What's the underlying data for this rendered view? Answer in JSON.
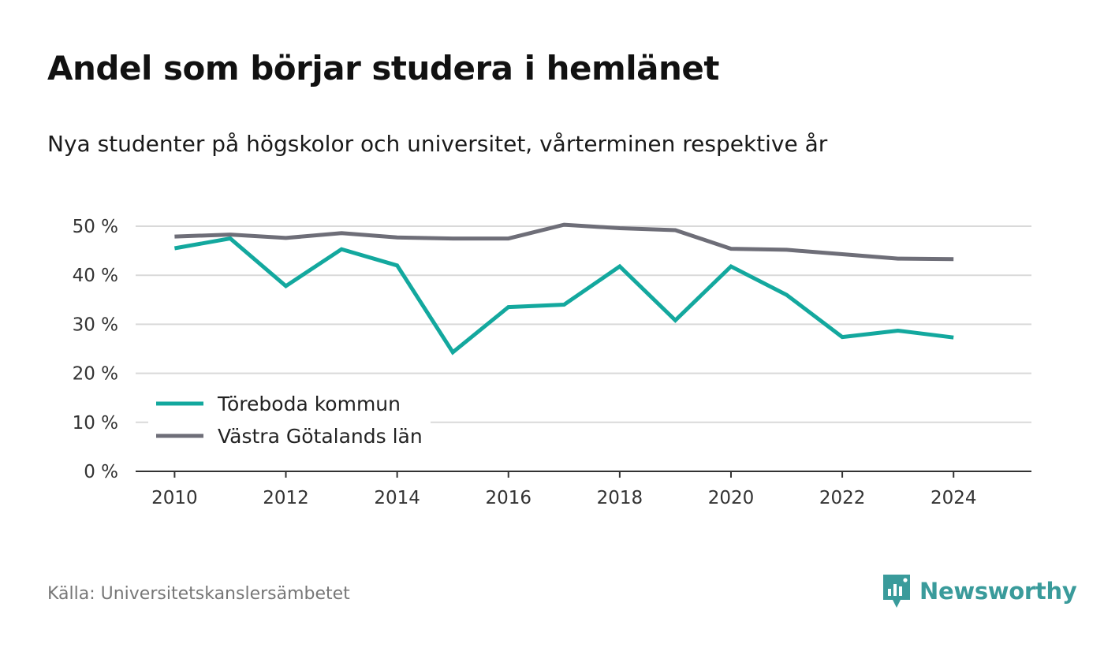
{
  "title": "Andel som börjar studera i hemlänet",
  "subtitle": "Nya studenter på högskolor och universitet, vårterminen respektive år",
  "source": "Källa: Universitetskanslersämbetet",
  "brand": {
    "name": "Newsworthy",
    "color": "#3a9b9b",
    "icon": "newsworthy-logo-icon"
  },
  "chart_data": {
    "type": "line",
    "x": [
      2010,
      2011,
      2012,
      2013,
      2014,
      2015,
      2016,
      2017,
      2018,
      2019,
      2020,
      2021,
      2022,
      2023,
      2024
    ],
    "xticks": [
      "2010",
      "2012",
      "2014",
      "2016",
      "2018",
      "2020",
      "2022",
      "2024"
    ],
    "xlim": [
      2009.3,
      2025.4
    ],
    "yticks": [
      "0 %",
      "10 %",
      "20 %",
      "30 %",
      "40 %",
      "50 %"
    ],
    "ylim": [
      0,
      50
    ],
    "grid": true,
    "legend_position": "bottom-left",
    "series": [
      {
        "name": "Töreboda kommun",
        "color": "#13a89e",
        "values": [
          45.5,
          47.5,
          37.8,
          45.3,
          42.0,
          24.3,
          33.5,
          34.0,
          41.8,
          30.8,
          41.8,
          36.0,
          27.4,
          28.7,
          27.3
        ]
      },
      {
        "name": "Västra Götalands län",
        "color": "#6e6e78",
        "values": [
          47.9,
          48.3,
          47.6,
          48.6,
          47.7,
          47.5,
          47.5,
          50.3,
          49.6,
          49.2,
          45.4,
          45.2,
          44.3,
          43.4,
          43.3
        ]
      }
    ]
  }
}
